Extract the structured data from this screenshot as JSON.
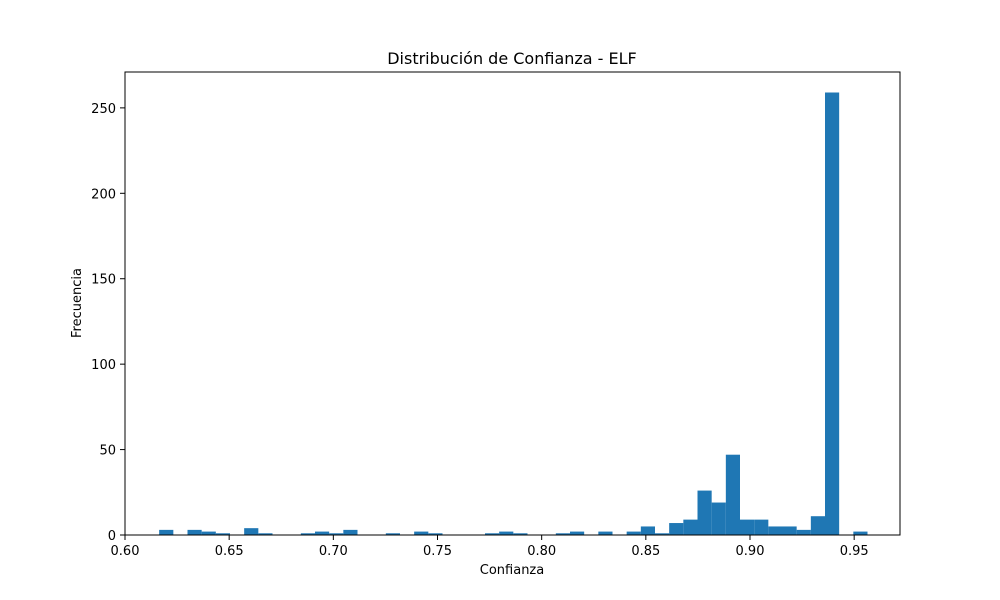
{
  "chart_data": {
    "type": "bar",
    "title": "Distribución de Confianza - ELF",
    "xlabel": "Confianza",
    "ylabel": "Frecuencia",
    "xlim": [
      0.6,
      0.972
    ],
    "ylim": [
      0,
      271
    ],
    "xticks": [
      0.6,
      0.65,
      0.7,
      0.75,
      0.8,
      0.85,
      0.9,
      0.95
    ],
    "xtick_labels": [
      "0.60",
      "0.65",
      "0.70",
      "0.75",
      "0.80",
      "0.85",
      "0.90",
      "0.95"
    ],
    "yticks": [
      0,
      50,
      100,
      150,
      200,
      250
    ],
    "ytick_labels": [
      "0",
      "50",
      "100",
      "150",
      "200",
      "250"
    ],
    "bin_width": 0.0068,
    "bins": [
      {
        "x0": 0.6164,
        "value": 3
      },
      {
        "x0": 0.63,
        "value": 3
      },
      {
        "x0": 0.6368,
        "value": 2
      },
      {
        "x0": 0.6436,
        "value": 1
      },
      {
        "x0": 0.6572,
        "value": 4
      },
      {
        "x0": 0.664,
        "value": 1
      },
      {
        "x0": 0.6844,
        "value": 1
      },
      {
        "x0": 0.6912,
        "value": 2
      },
      {
        "x0": 0.698,
        "value": 1
      },
      {
        "x0": 0.7048,
        "value": 3
      },
      {
        "x0": 0.7252,
        "value": 1
      },
      {
        "x0": 0.7388,
        "value": 2
      },
      {
        "x0": 0.7456,
        "value": 1
      },
      {
        "x0": 0.7728,
        "value": 1
      },
      {
        "x0": 0.7796,
        "value": 2
      },
      {
        "x0": 0.7864,
        "value": 1
      },
      {
        "x0": 0.8068,
        "value": 1
      },
      {
        "x0": 0.8136,
        "value": 2
      },
      {
        "x0": 0.8272,
        "value": 2
      },
      {
        "x0": 0.8408,
        "value": 2
      },
      {
        "x0": 0.8476,
        "value": 5
      },
      {
        "x0": 0.8544,
        "value": 1
      },
      {
        "x0": 0.8612,
        "value": 7
      },
      {
        "x0": 0.868,
        "value": 9
      },
      {
        "x0": 0.8748,
        "value": 26
      },
      {
        "x0": 0.8816,
        "value": 19
      },
      {
        "x0": 0.8884,
        "value": 47
      },
      {
        "x0": 0.8952,
        "value": 9
      },
      {
        "x0": 0.902,
        "value": 9
      },
      {
        "x0": 0.9088,
        "value": 5
      },
      {
        "x0": 0.9156,
        "value": 5
      },
      {
        "x0": 0.9224,
        "value": 3
      },
      {
        "x0": 0.9292,
        "value": 11
      },
      {
        "x0": 0.936,
        "value": 259
      },
      {
        "x0": 0.9496,
        "value": 2
      }
    ],
    "grid": false,
    "legend": "none",
    "bar_color": "#1f77b4"
  }
}
